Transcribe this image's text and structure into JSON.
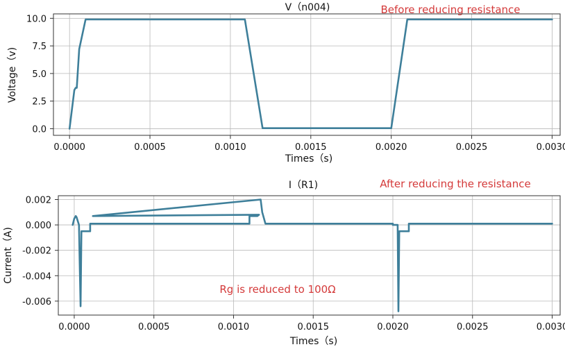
{
  "chart_data": [
    {
      "type": "line",
      "title": "V（n004)",
      "annotation": "Before reducing resistance",
      "xlabel": "Times（s)",
      "ylabel": "Voltage（v)",
      "xlim": [
        -0.0001,
        0.00305
      ],
      "ylim": [
        -0.6,
        10.4
      ],
      "xticks": [
        0.0,
        0.0005,
        0.001,
        0.0015,
        0.002,
        0.0025,
        0.003
      ],
      "xtick_labels": [
        "0.0000",
        "0.0005",
        "0.0010",
        "0.0015",
        "0.0020",
        "0.0025",
        "0.0030"
      ],
      "yticks": [
        0.0,
        2.5,
        5.0,
        7.5,
        10.0
      ],
      "ytick_labels": [
        "0.0",
        "2.5",
        "5.0",
        "7.5",
        "10.0"
      ],
      "grid": true,
      "line_color": "#3e7f9a",
      "annotation_color": "#d43a3a",
      "series": [
        {
          "x": [
            0.0,
            3e-05,
            3.8e-05,
            4.5e-05,
            6e-05,
            0.0001,
            0.00109,
            0.0012,
            0.002,
            0.0021,
            0.003
          ],
          "y": [
            0.0,
            3.5,
            3.7,
            3.7,
            7.2,
            9.9,
            9.9,
            0.05,
            0.05,
            9.9,
            9.9
          ]
        }
      ]
    },
    {
      "type": "line",
      "title": "I（R1)",
      "annotation": "After reducing the resistance",
      "inner_annotation": "Rg is reduced to 100Ω",
      "xlabel": "Times（s)",
      "ylabel": "Current（A)",
      "xlim": [
        -0.0001,
        0.00305
      ],
      "ylim": [
        -0.0071,
        0.0023
      ],
      "xticks": [
        0.0,
        0.0005,
        0.001,
        0.0015,
        0.002,
        0.0025,
        0.003
      ],
      "xtick_labels": [
        "0.0000",
        "0.0005",
        "0.0010",
        "0.0015",
        "0.0020",
        "0.0025",
        "0.0030"
      ],
      "yticks": [
        0.002,
        0.0,
        -0.002,
        -0.004,
        -0.006
      ],
      "ytick_labels": [
        "0.002",
        "0.000",
        "-0.002",
        "-0.004",
        "-0.006"
      ],
      "grid": true,
      "line_color": "#3e7f9a",
      "annotation_color": "#d43a3a",
      "series": [
        {
          "x": [
            -1e-05,
            0.0,
            1e-05,
            1.5e-05,
            2e-05,
            3e-05,
            3.5e-05,
            4e-05,
            4.5e-05,
            5e-05,
            0.0001,
            0.0001,
            0.0011,
            0.0011,
            0.00115,
            0.00116,
            0.000117,
            0.00117,
            0.00118,
            0.0012,
            0.002,
            0.002,
            0.00203,
            0.002035,
            0.00204,
            0.00205,
            0.0021,
            0.0021,
            0.003
          ],
          "y": [
            0.0,
            0.0005,
            0.0007,
            0.0006,
            0.0004,
            0.0,
            -0.0035,
            -0.0064,
            -0.0005,
            -0.0005,
            -0.0005,
            0.0001,
            0.0001,
            0.0007,
            0.0007,
            0.0008,
            0.0007,
            0.002,
            0.001,
            0.0001,
            0.0001,
            0.0,
            0.0,
            -0.0068,
            -0.0005,
            -0.0005,
            -0.0005,
            0.0001,
            0.0001
          ]
        }
      ]
    }
  ]
}
